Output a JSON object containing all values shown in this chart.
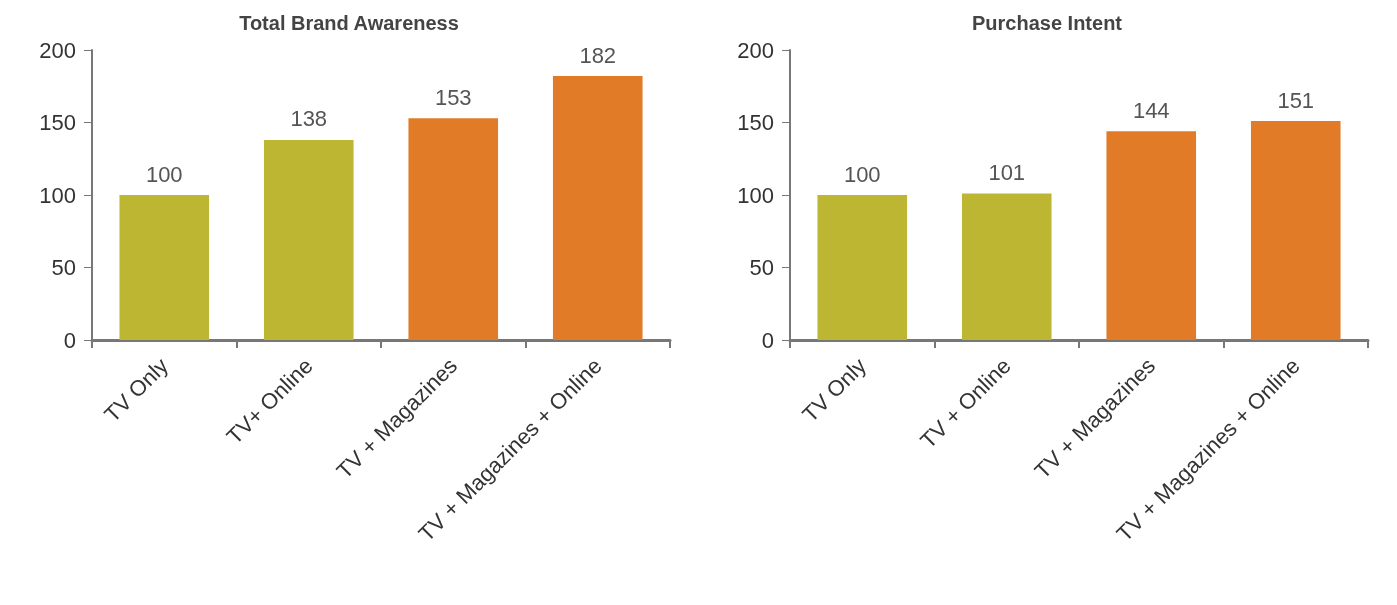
{
  "chart_data": [
    {
      "type": "bar",
      "title": "Total Brand Awareness",
      "categories": [
        "TV Only",
        "TV+ Online",
        "TV + Magazines",
        "TV + Magazines + Online"
      ],
      "values": [
        100,
        138,
        153,
        182
      ],
      "colors": [
        "#bdb633",
        "#bdb633",
        "#e17b27",
        "#e17b27"
      ],
      "ylim": [
        0,
        200
      ],
      "yticks": [
        0,
        50,
        100,
        150,
        200
      ],
      "data_labels": true
    },
    {
      "type": "bar",
      "title": "Purchase Intent",
      "categories": [
        "TV Only",
        "TV + Online",
        "TV + Magazines",
        "TV + Magazines + Online"
      ],
      "values": [
        100,
        101,
        144,
        151
      ],
      "colors": [
        "#bdb633",
        "#bdb633",
        "#e17b27",
        "#e17b27"
      ],
      "ylim": [
        0,
        200
      ],
      "yticks": [
        0,
        50,
        100,
        150,
        200
      ],
      "data_labels": true
    }
  ]
}
